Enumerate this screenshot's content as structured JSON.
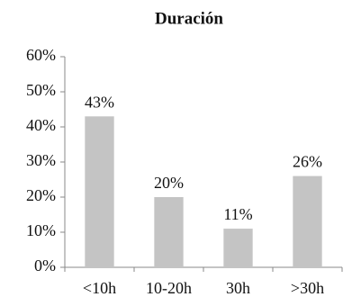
{
  "chart_data": {
    "type": "bar",
    "title": "Duración",
    "categories": [
      "<10h",
      "10-20h",
      "30h",
      ">30h"
    ],
    "values": [
      43,
      20,
      11,
      26
    ],
    "value_labels": [
      "43%",
      "20%",
      "11%",
      "26%"
    ],
    "color": "#c4c4c4",
    "ylim": [
      0,
      60
    ],
    "yticks": [
      {
        "value": 0,
        "label": "0%"
      },
      {
        "value": 10,
        "label": "10%"
      },
      {
        "value": 20,
        "label": "20%"
      },
      {
        "value": 30,
        "label": "30%"
      },
      {
        "value": 40,
        "label": "40%"
      },
      {
        "value": 50,
        "label": "50%"
      },
      {
        "value": 60,
        "label": "60%"
      }
    ],
    "grid": false
  }
}
